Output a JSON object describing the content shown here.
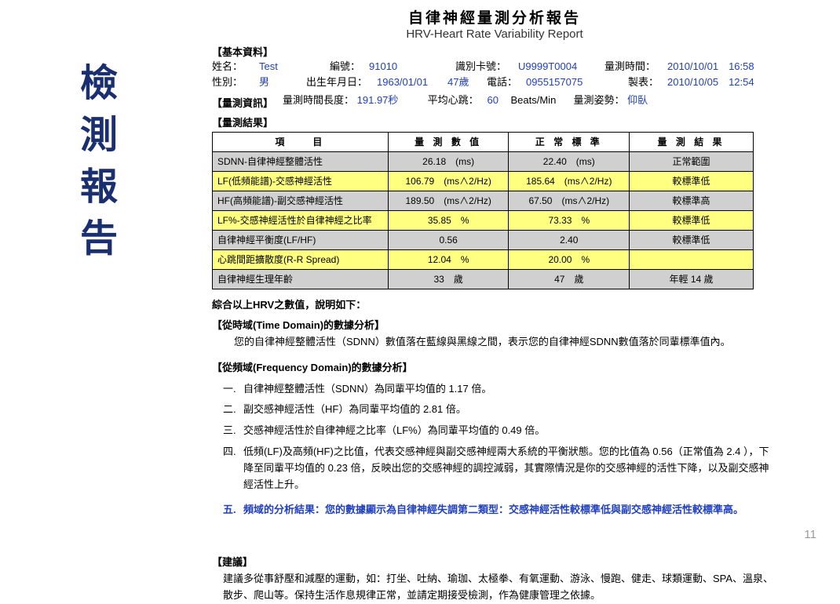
{
  "sidebar_title": "檢測報告",
  "page_number": "11",
  "header": {
    "title_cn": "自律神經量測分析報告",
    "title_en": "HRV-Heart Rate Variability Report",
    "section_basic": "【基本資料】",
    "name_label": "姓名：",
    "name": "Test",
    "code_label": "編號：",
    "code": "91010",
    "card_label": "識別卡號：",
    "card": "U9999T0004",
    "measure_time_label": "量測時間：",
    "measure_time": "2010/10/01　16:58",
    "sex_label": "性別：",
    "sex": "男",
    "birth_label": "出生年月日：",
    "birth": "1963/01/01",
    "age": "47歲",
    "phone_label": "電話：",
    "phone": "0955157075",
    "print_label": "製表：",
    "print": "2010/10/05　12:54",
    "section_measinfo": "【量測資訊】",
    "duration_label": "量測時間長度：",
    "duration": "191.97秒",
    "hr_label": "平均心跳：",
    "hr": "60",
    "hr_unit": "Beats/Min",
    "posture_label": "量測姿勢：",
    "posture": "仰臥",
    "section_results": "【量測結果】"
  },
  "table": {
    "h1": "項　　目",
    "h2": "量 測 數 值",
    "h3": "正 常 標 準",
    "h4": "量 測 結 果",
    "rows": [
      {
        "cls": "gray",
        "c1": "SDNN-自律神經整體活性",
        "c2": "26.18　(ms)",
        "c3": "22.40　(ms)",
        "c4": "正常範圍"
      },
      {
        "cls": "yellow",
        "c1": "LF(低頻能譜)-交感神經活性",
        "c2": "106.79　(ms∧2/Hz)",
        "c3": "185.64　(ms∧2/Hz)",
        "c4": "較標準低"
      },
      {
        "cls": "gray",
        "c1": "HF(高頻能譜)-副交感神經活性",
        "c2": "189.50　(ms∧2/Hz)",
        "c3": "67.50　(ms∧2/Hz)",
        "c4": "較標準高"
      },
      {
        "cls": "yellow",
        "c1": "LF%-交感神經活性於自律神經之比率",
        "c2": "35.85　%",
        "c3": "73.33　%",
        "c4": "較標準低"
      },
      {
        "cls": "gray",
        "c1": "自律神經平衡度(LF/HF)",
        "c2": "0.56",
        "c3": "2.40",
        "c4": "較標準低"
      },
      {
        "cls": "yellow",
        "c1": "心跳間距擴散度(R-R Spread)",
        "c2": "12.04　%",
        "c3": "20.00　%",
        "c4": ""
      },
      {
        "cls": "gray",
        "c1": "自律神經生理年齡",
        "c2": "33　歲",
        "c3": "47　歲",
        "c4": "年輕 14 歲"
      }
    ]
  },
  "analysis": {
    "intro": "綜合以上HRV之數值，說明如下：",
    "time_head": "【從時域(Time Domain)的數據分析】",
    "time_para": "您的自律神經整體活性（SDNN）數值落在藍線與黑線之間，表示您的自律神經SDNN數值落於同輩標準值內。",
    "freq_head": "【從頻域(Frequency Domain)的數據分析】",
    "f1_no": "一.",
    "f1": "自律神經整體活性（SDNN）為同輩平均值的 1.17 倍。",
    "f2_no": "二.",
    "f2": "副交感神經活性（HF）為同輩平均值的 2.81 倍。",
    "f3_no": "三.",
    "f3": "交感神經活性於自律神經之比率（LF%）為同輩平均值的 0.49 倍。",
    "f4_no": "四.",
    "f4": "低頻(LF)及高頻(HF)之比值，代表交感神經與副交感神經兩大系統的平衡狀態。您的比值為 0.56（正常值為 2.4 ），下降至同輩平均值的 0.23 倍，反映出您的交感神經的調控減弱，其實際情況是你的交感神經的活性下降，以及副交感神經活性上升。",
    "f5_no": "五.",
    "f5": "頻域的分析結果：您的數據顯示為自律神經失調第二類型：交感神經活性較標準低與副交感神經活性較標準高。",
    "suggest_head": "【建議】",
    "suggest_body": "建議多從事舒壓和減壓的運動，如：打坐、吐納、瑜珈、太極拳、有氧運動、游泳、慢跑、健走、球類運動、SPA、溫泉、散步、爬山等。保持生活作息規律正常，並請定期接受檢測，作為健康管理之依據。"
  }
}
